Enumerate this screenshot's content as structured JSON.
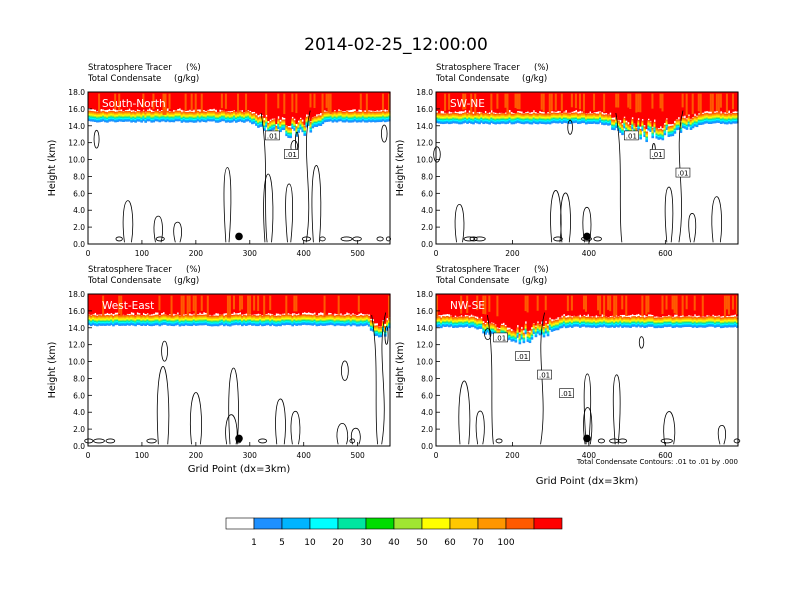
{
  "title": "2014-02-25_12:00:00",
  "panel_header": {
    "line1": "Stratosphere Tracer",
    "line1_unit": "(%)",
    "line2": "Total Condensate",
    "line2_unit": "(g/kg)"
  },
  "ylabel": "Height (km)",
  "xlabel": "Grid Point (dx=3km)",
  "contour_note": "Total Condensate Contours: .01 to .01 by .000",
  "colorbar": {
    "colors": [
      "#ffffff",
      "#1e90ff",
      "#00b4ff",
      "#00ffff",
      "#00e6a0",
      "#00dc00",
      "#a0e632",
      "#ffff00",
      "#ffc800",
      "#ff9600",
      "#ff5a00",
      "#ff0000"
    ],
    "labels": [
      "1",
      "5",
      "10",
      "20",
      "30",
      "40",
      "50",
      "60",
      "70",
      "100"
    ]
  },
  "chart_data": [
    {
      "type": "heatmap",
      "name": "South-North",
      "xlim": [
        0,
        560
      ],
      "xticks": [
        0,
        100,
        200,
        300,
        400,
        500
      ],
      "ylim": [
        0,
        18
      ],
      "yticks": [
        "0.0",
        "2.0",
        "4.0",
        "6.0",
        "8.0",
        "10.0",
        "12.0",
        "14.0",
        "16.0",
        "18.0"
      ],
      "marker_x": 280,
      "contour_labels": [
        ".01",
        ".01"
      ],
      "tracer_base_km": 14.6,
      "ridge": {
        "x0": 300,
        "x1": 440
      }
    },
    {
      "type": "heatmap",
      "name": "SW-NE",
      "xlim": [
        0,
        790
      ],
      "xticks": [
        0,
        200,
        400,
        600
      ],
      "ylim": [
        0,
        18
      ],
      "yticks": [
        "0.0",
        "2.0",
        "4.0",
        "6.0",
        "8.0",
        "10.0",
        "12.0",
        "14.0",
        "16.0",
        "18.0"
      ],
      "marker_x": 395,
      "contour_labels": [
        ".01",
        ".01",
        ".01"
      ],
      "tracer_base_km": 14.4,
      "ridge": {
        "x0": 430,
        "x1": 700
      }
    },
    {
      "type": "heatmap",
      "name": "West-East",
      "xlim": [
        0,
        560
      ],
      "xticks": [
        0,
        100,
        200,
        300,
        400,
        500
      ],
      "ylim": [
        0,
        18
      ],
      "yticks": [
        "0.0",
        "2.0",
        "4.0",
        "6.0",
        "8.0",
        "10.0",
        "12.0",
        "14.0",
        "16.0",
        "18.0"
      ],
      "marker_x": 280,
      "contour_labels": [],
      "tracer_base_km": 14.4,
      "ridge": {
        "x0": 520,
        "x1": 560
      }
    },
    {
      "type": "heatmap",
      "name": "NW-SE",
      "xlim": [
        0,
        790
      ],
      "xticks": [
        0,
        200,
        400,
        600
      ],
      "ylim": [
        0,
        18
      ],
      "yticks": [
        "0.0",
        "2.0",
        "4.0",
        "6.0",
        "8.0",
        "10.0",
        "12.0",
        "14.0",
        "16.0",
        "18.0"
      ],
      "marker_x": 395,
      "contour_labels": [
        ".01",
        ".01",
        ".01",
        ".01"
      ],
      "tracer_base_km": 14.2,
      "ridge": {
        "x0": 100,
        "x1": 330
      }
    }
  ]
}
